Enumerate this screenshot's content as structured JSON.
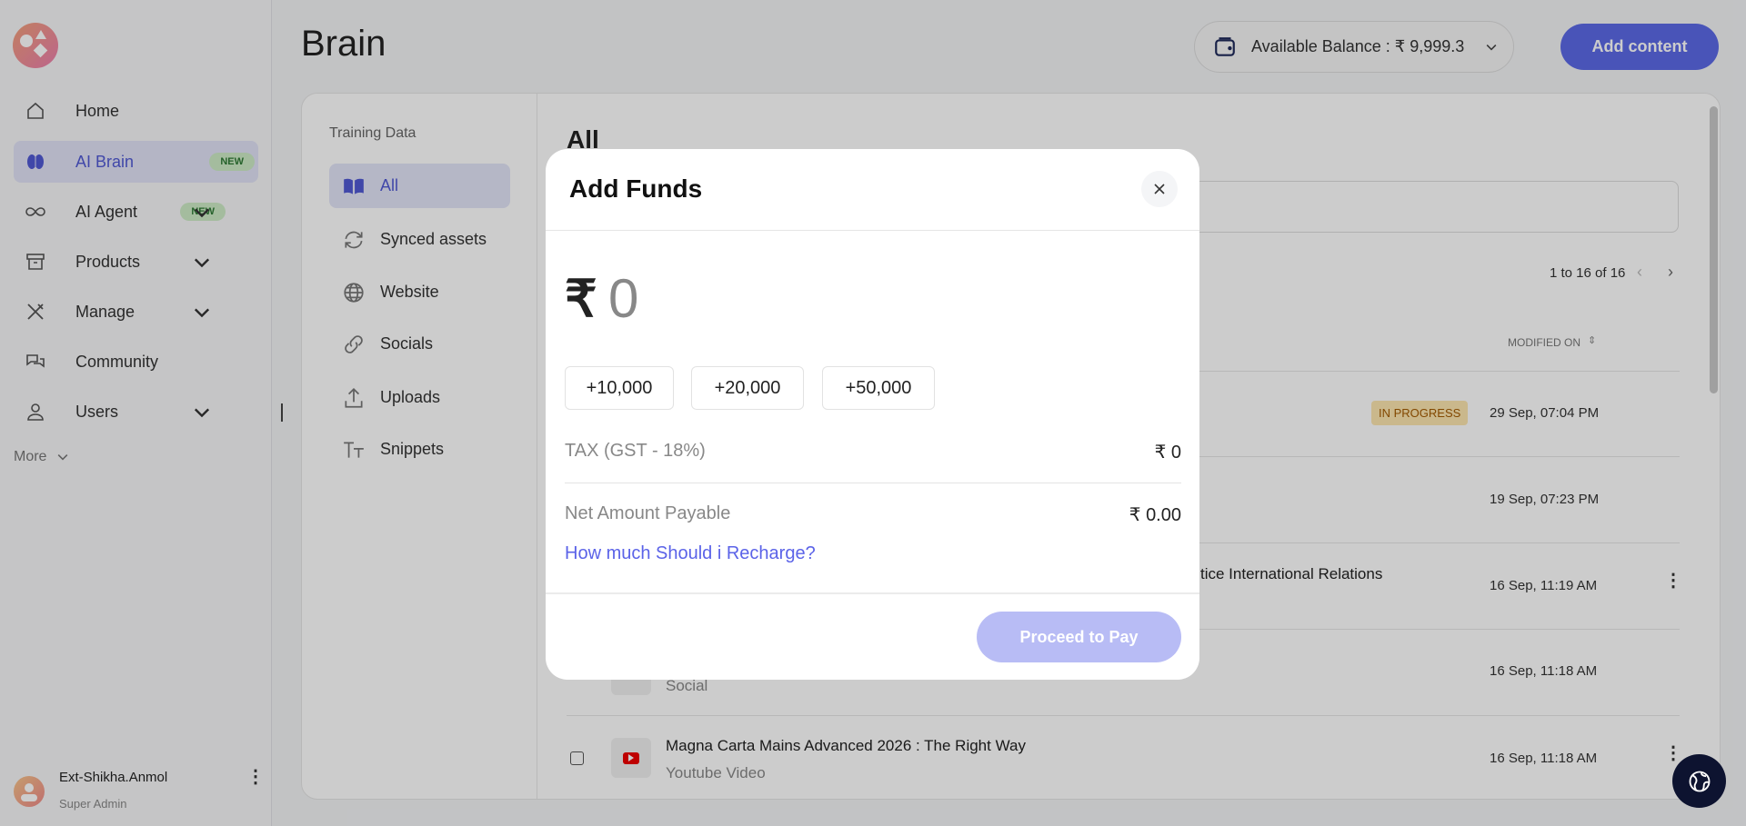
{
  "sidebar": {
    "items": [
      {
        "label": "Home",
        "icon": "home-icon"
      },
      {
        "label": "AI Brain",
        "icon": "brain-icon",
        "badge": "NEW",
        "active": true
      },
      {
        "label": "AI Agent",
        "icon": "infinity-icon",
        "badge": "NEW",
        "chevron": true
      },
      {
        "label": "Products",
        "icon": "archive-icon",
        "chevron": true
      },
      {
        "label": "Manage",
        "icon": "tools-icon",
        "chevron": true
      },
      {
        "label": "Community",
        "icon": "chat-icon"
      },
      {
        "label": "Users",
        "icon": "user-icon",
        "chevron": true
      }
    ],
    "more": "More",
    "user": {
      "name": "Ext-Shikha.Anmol",
      "role": "Super Admin"
    }
  },
  "header": {
    "title": "Brain",
    "balance": "Available Balance : ₹ 9,999.3",
    "add_content": "Add content"
  },
  "training": {
    "heading": "Training Data",
    "items": [
      {
        "label": "All",
        "icon": "book-icon"
      },
      {
        "label": "Synced assets",
        "icon": "sync-icon"
      },
      {
        "label": "Website",
        "icon": "globe-icon"
      },
      {
        "label": "Socials",
        "icon": "link-icon"
      },
      {
        "label": "Uploads",
        "icon": "upload-icon"
      },
      {
        "label": "Snippets",
        "icon": "text-icon"
      }
    ]
  },
  "content": {
    "title": "All",
    "pagination": "1 to 16 of 16",
    "modified_header": "MODIFIED ON",
    "rows": [
      {
        "status": "IN PROGRESS",
        "date": "29 Sep, 07:04 PM"
      },
      {
        "date": "19 Sep, 07:23 PM"
      },
      {
        "title_partial": "tice International Relations",
        "date": "16 Sep, 11:19 AM"
      },
      {
        "subtitle": "Social",
        "date": "16 Sep, 11:18 AM"
      },
      {
        "title": "Magna Carta Mains Advanced 2026 : The Right Way",
        "subtitle": "Youtube Video",
        "date": "16 Sep, 11:18 AM"
      }
    ]
  },
  "modal": {
    "title": "Add Funds",
    "currency": "₹",
    "amount": "0",
    "chips": [
      "+10,000",
      "+20,000",
      "+50,000"
    ],
    "tax_label": "TAX (GST - 18%)",
    "tax_value": "₹ 0",
    "net_label": "Net Amount Payable",
    "net_value": "₹ 0.00",
    "help_link": "How much Should i Recharge?",
    "proceed": "Proceed to Pay"
  },
  "colors": {
    "accent": "#5c6ae6",
    "proceed_disabled": "#b8bcf5",
    "link": "#5b63e8",
    "status_bg": "#fde7b0",
    "status_text": "#a35a00"
  }
}
